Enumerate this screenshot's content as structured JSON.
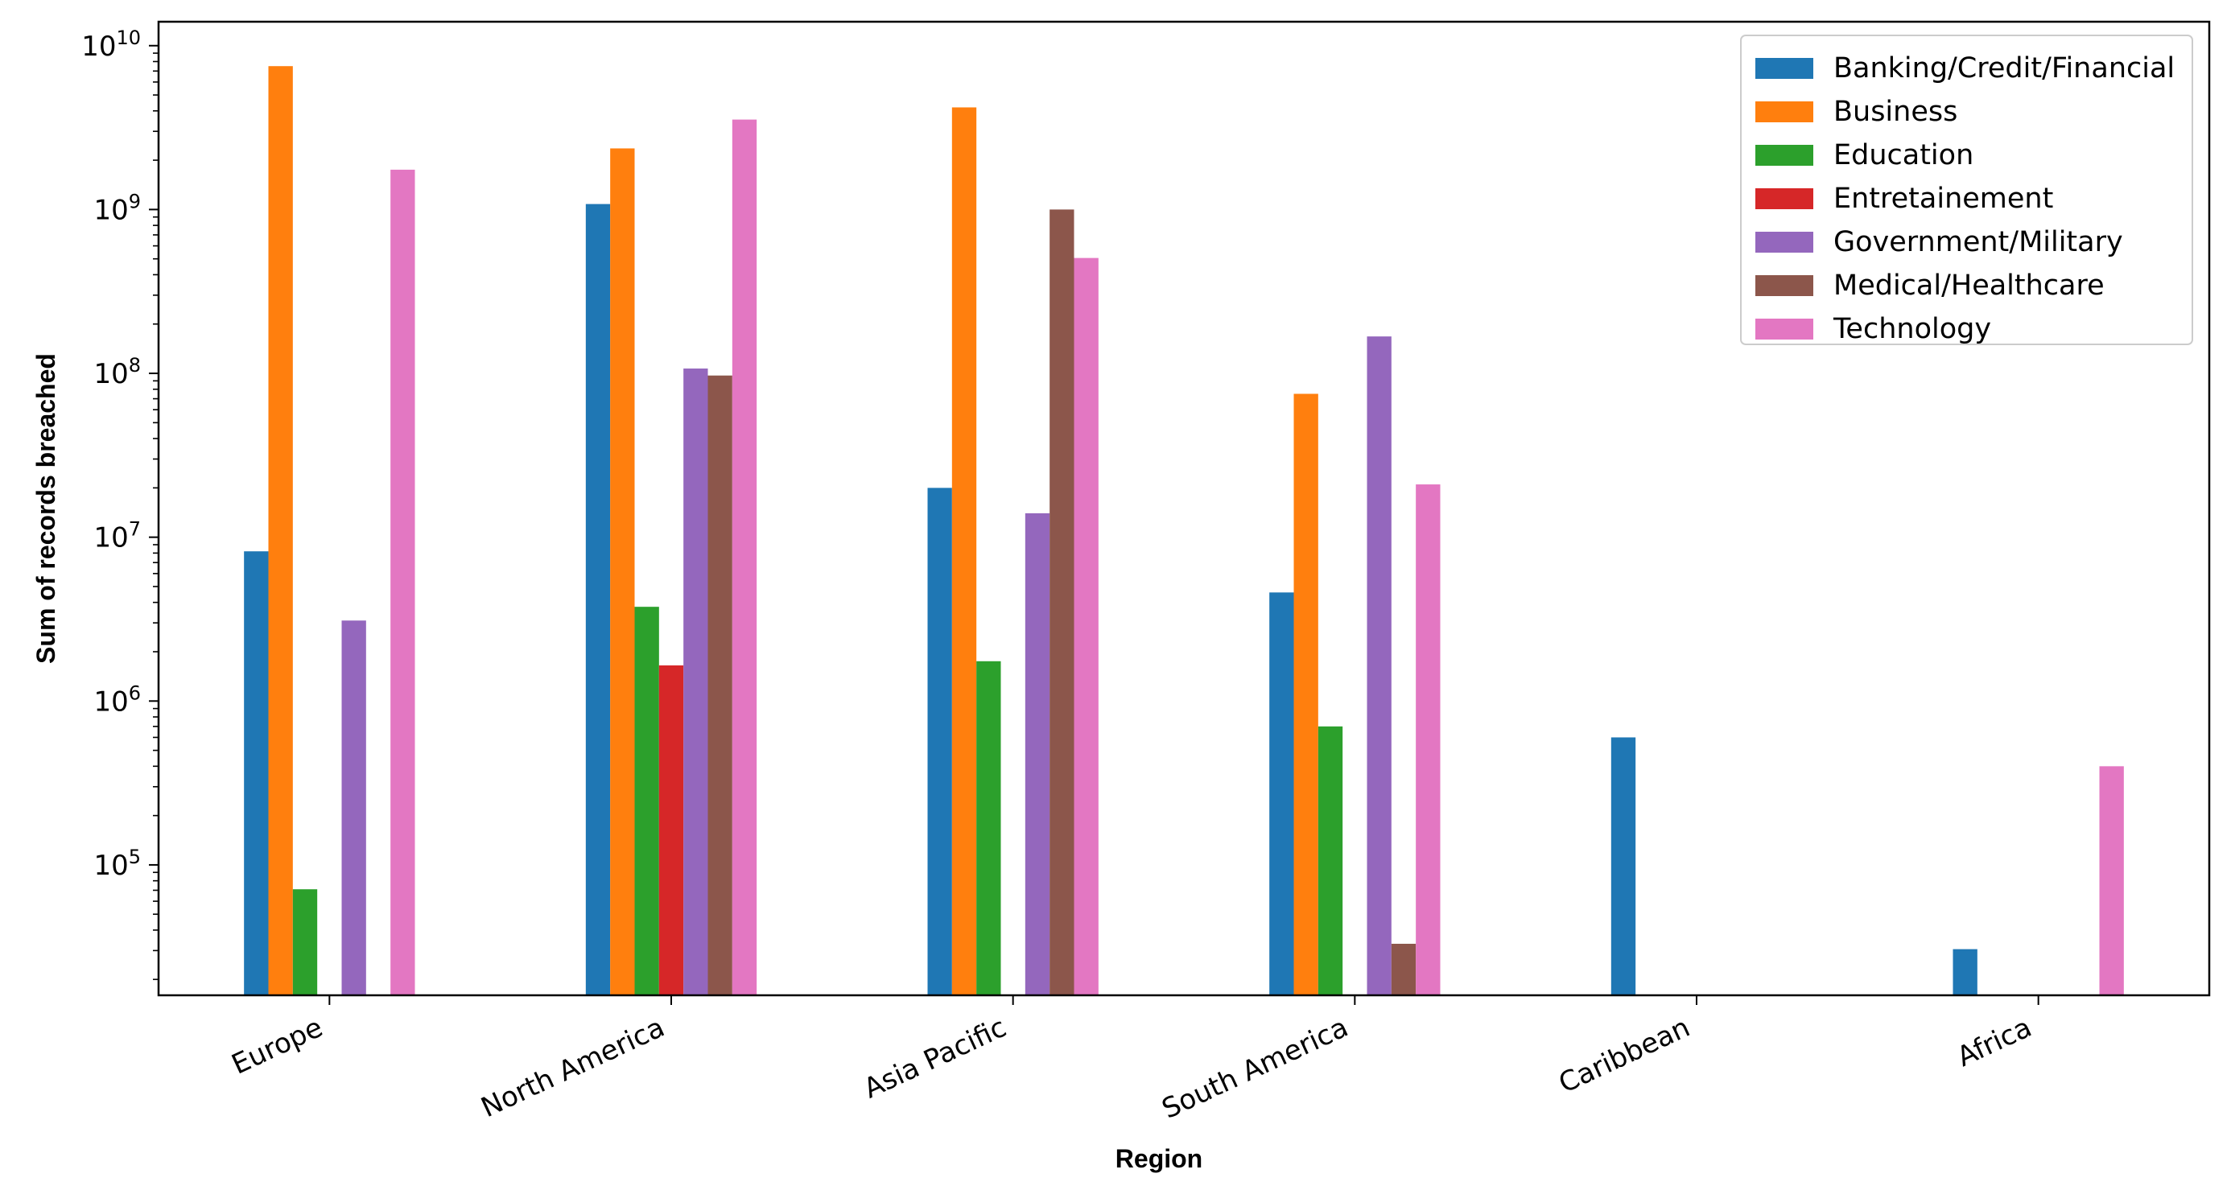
{
  "chart_data": {
    "type": "bar",
    "title": "",
    "xlabel": "Region",
    "ylabel": "Sum of records breached",
    "yscale": "log",
    "ylim": [
      16000,
      14000000000
    ],
    "yticks": [
      {
        "value": 100000,
        "base": "10",
        "exp": "5"
      },
      {
        "value": 1000000,
        "base": "10",
        "exp": "6"
      },
      {
        "value": 10000000,
        "base": "10",
        "exp": "7"
      },
      {
        "value": 100000000,
        "base": "10",
        "exp": "8"
      },
      {
        "value": 1000000000,
        "base": "10",
        "exp": "9"
      },
      {
        "value": 10000000000,
        "base": "10",
        "exp": "10"
      }
    ],
    "categories": [
      "Europe",
      "North America",
      "Asia Pacific",
      "South America",
      "Caribbean",
      "Africa"
    ],
    "legend_position": "top-right",
    "grid": false,
    "series": [
      {
        "name": "Banking/Credit/Financial",
        "color": "#1f77b4",
        "values": [
          8200000,
          1080000000,
          20000000,
          4600000,
          600000,
          30600
        ]
      },
      {
        "name": "Business",
        "color": "#ff7f0e",
        "values": [
          7500000000,
          2360000000,
          4200000000,
          75000000,
          null,
          null
        ]
      },
      {
        "name": "Education",
        "color": "#2ca02c",
        "values": [
          71000,
          3760000,
          1750000,
          700000,
          null,
          null
        ]
      },
      {
        "name": "Entretainement",
        "color": "#d62728",
        "values": [
          null,
          1650000,
          null,
          null,
          null,
          null
        ]
      },
      {
        "name": "Government/Military",
        "color": "#9467bd",
        "values": [
          3100000,
          107000000,
          14000000,
          168000000,
          null,
          null
        ]
      },
      {
        "name": "Medical/Healthcare",
        "color": "#8c564b",
        "values": [
          null,
          97000000,
          1000000000,
          33000,
          null,
          null
        ]
      },
      {
        "name": "Technology",
        "color": "#e377c2",
        "values": [
          1750000000,
          3540000000,
          506000000,
          21000000,
          null,
          400000
        ]
      }
    ]
  }
}
